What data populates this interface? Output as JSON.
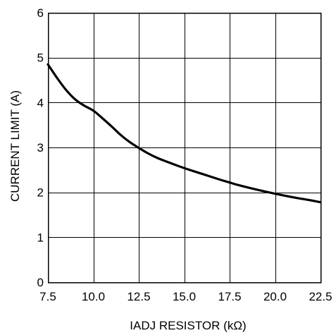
{
  "chart_data": {
    "type": "line",
    "title": "",
    "xlabel": "IADJ RESISTOR (kΩ)",
    "ylabel": "CURRENT LIMIT (A)",
    "xlim": [
      7.5,
      22.5
    ],
    "ylim": [
      0,
      6
    ],
    "xticks": [
      "7.5",
      "10.0",
      "12.5",
      "15.0",
      "17.5",
      "20.0",
      "22.5"
    ],
    "yticks": [
      "0",
      "1",
      "2",
      "3",
      "4",
      "5",
      "6"
    ],
    "grid": true,
    "legend": "none",
    "colors": {
      "line": "#000000",
      "grid": "#000000",
      "background": "#ffffff"
    },
    "series": [
      {
        "x": [
          7.5,
          8.0,
          8.5,
          9.0,
          9.5,
          10.0,
          10.5,
          11.0,
          11.5,
          12.0,
          12.5,
          13.0,
          13.5,
          14.0,
          15.0,
          16.0,
          17.0,
          17.5,
          18.0,
          19.0,
          20.0,
          21.0,
          22.0,
          22.5
        ],
        "values": [
          4.85,
          4.55,
          4.28,
          4.07,
          3.93,
          3.82,
          3.65,
          3.47,
          3.28,
          3.12,
          2.99,
          2.87,
          2.77,
          2.69,
          2.54,
          2.41,
          2.28,
          2.22,
          2.16,
          2.06,
          1.97,
          1.89,
          1.82,
          1.78
        ]
      }
    ]
  }
}
